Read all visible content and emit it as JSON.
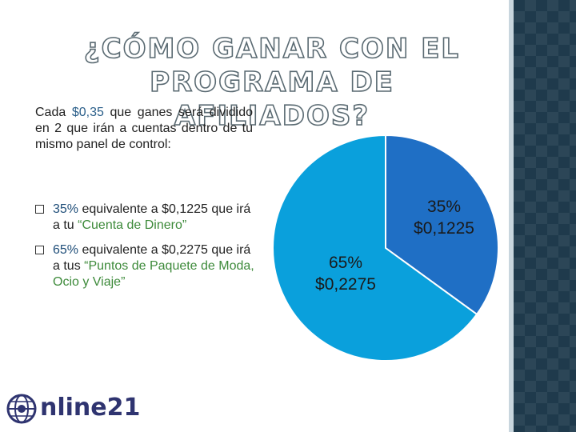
{
  "title": {
    "line1": "¿CÓMO GANAR CON EL",
    "line2": "PROGRAMA DE AFILIADOS?"
  },
  "intro": {
    "prefix": "Cada ",
    "amount": "$0,35",
    "suffix": " que ganes será dividido en 2 que irán a cuentas dentro de tu mismo panel de control:"
  },
  "bullets": [
    {
      "pct": "35%",
      "text": " equivalente a $0,1225 que irá a tu ",
      "highlight": "“Cuenta de Dinero”"
    },
    {
      "pct": "65%",
      "text": " equivalente a $0,2275 que irá a tus ",
      "highlight": "“Puntos de Paquete de Moda, Ocio y Viaje”"
    }
  ],
  "chart_data": {
    "type": "pie",
    "slices": [
      {
        "percent": 35,
        "value": "$0,1225",
        "label_pct": "35%",
        "color": "#1f6fc5"
      },
      {
        "percent": 65,
        "value": "$0,2275",
        "label_pct": "65%",
        "color": "#0aa0dc"
      }
    ],
    "start_angle": "12 o'clock, clockwise"
  },
  "logo": {
    "text": "nline21",
    "icon": "globe-icon",
    "color": "#2f3470"
  }
}
